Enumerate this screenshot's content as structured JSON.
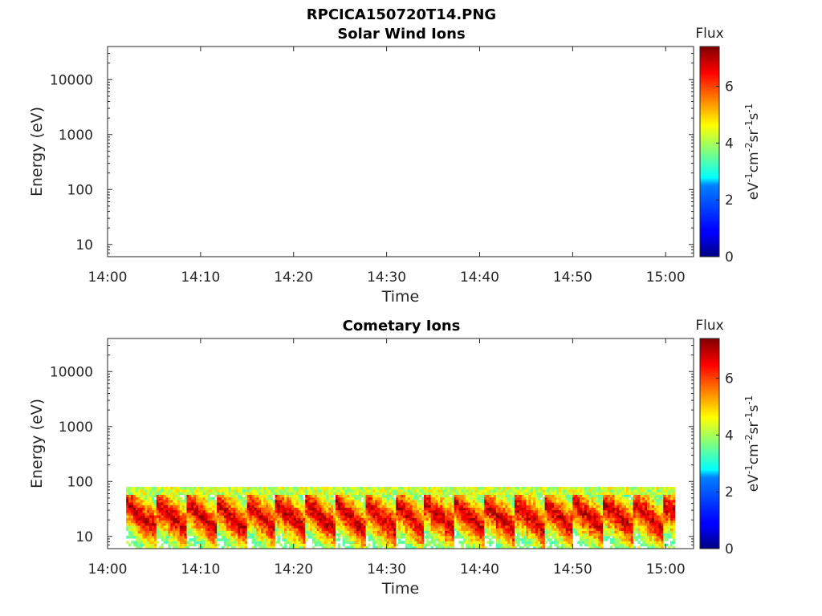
{
  "figure_title": "RPCICA150720T14.PNG",
  "colorbar": {
    "title": "Flux",
    "unit_base": "eV",
    "unit_parts": [
      {
        "base": "eV",
        "exp": "-1"
      },
      {
        "base": "cm",
        "exp": "-2"
      },
      {
        "base": "sr",
        "exp": "-1"
      },
      {
        "base": "s",
        "exp": "-1"
      }
    ],
    "range": [
      0,
      7.4
    ],
    "ticks": [
      "0",
      "2",
      "4",
      "6"
    ],
    "colormap": "jet"
  },
  "chart_data": [
    {
      "type": "heatmap",
      "title": "Solar Wind Ions",
      "xlabel": "Time",
      "ylabel": "Energy (eV)",
      "x_range": [
        "14:00",
        "15:03"
      ],
      "y_range": [
        6,
        40000
      ],
      "y_scale": "log",
      "xticks": [
        "14:00",
        "14:10",
        "14:20",
        "14:30",
        "14:40",
        "14:50",
        "15:00"
      ],
      "yticks": [
        "10",
        "100",
        "1000",
        "10000"
      ],
      "data": "empty"
    },
    {
      "type": "heatmap",
      "title": "Cometary Ions",
      "xlabel": "Time",
      "ylabel": "Energy (eV)",
      "x_range": [
        "14:00",
        "15:03"
      ],
      "y_range": [
        6,
        40000
      ],
      "y_scale": "log",
      "xticks": [
        "14:00",
        "14:10",
        "14:20",
        "14:30",
        "14:40",
        "14:50",
        "15:00"
      ],
      "yticks": [
        "10",
        "100",
        "1000",
        "10000"
      ],
      "data_time_range": [
        "14:02",
        "15:01"
      ],
      "energy_band_eV": [
        6,
        80
      ],
      "peak_flux_energy_eV": [
        10,
        40
      ],
      "peak_flux": 7
    }
  ]
}
